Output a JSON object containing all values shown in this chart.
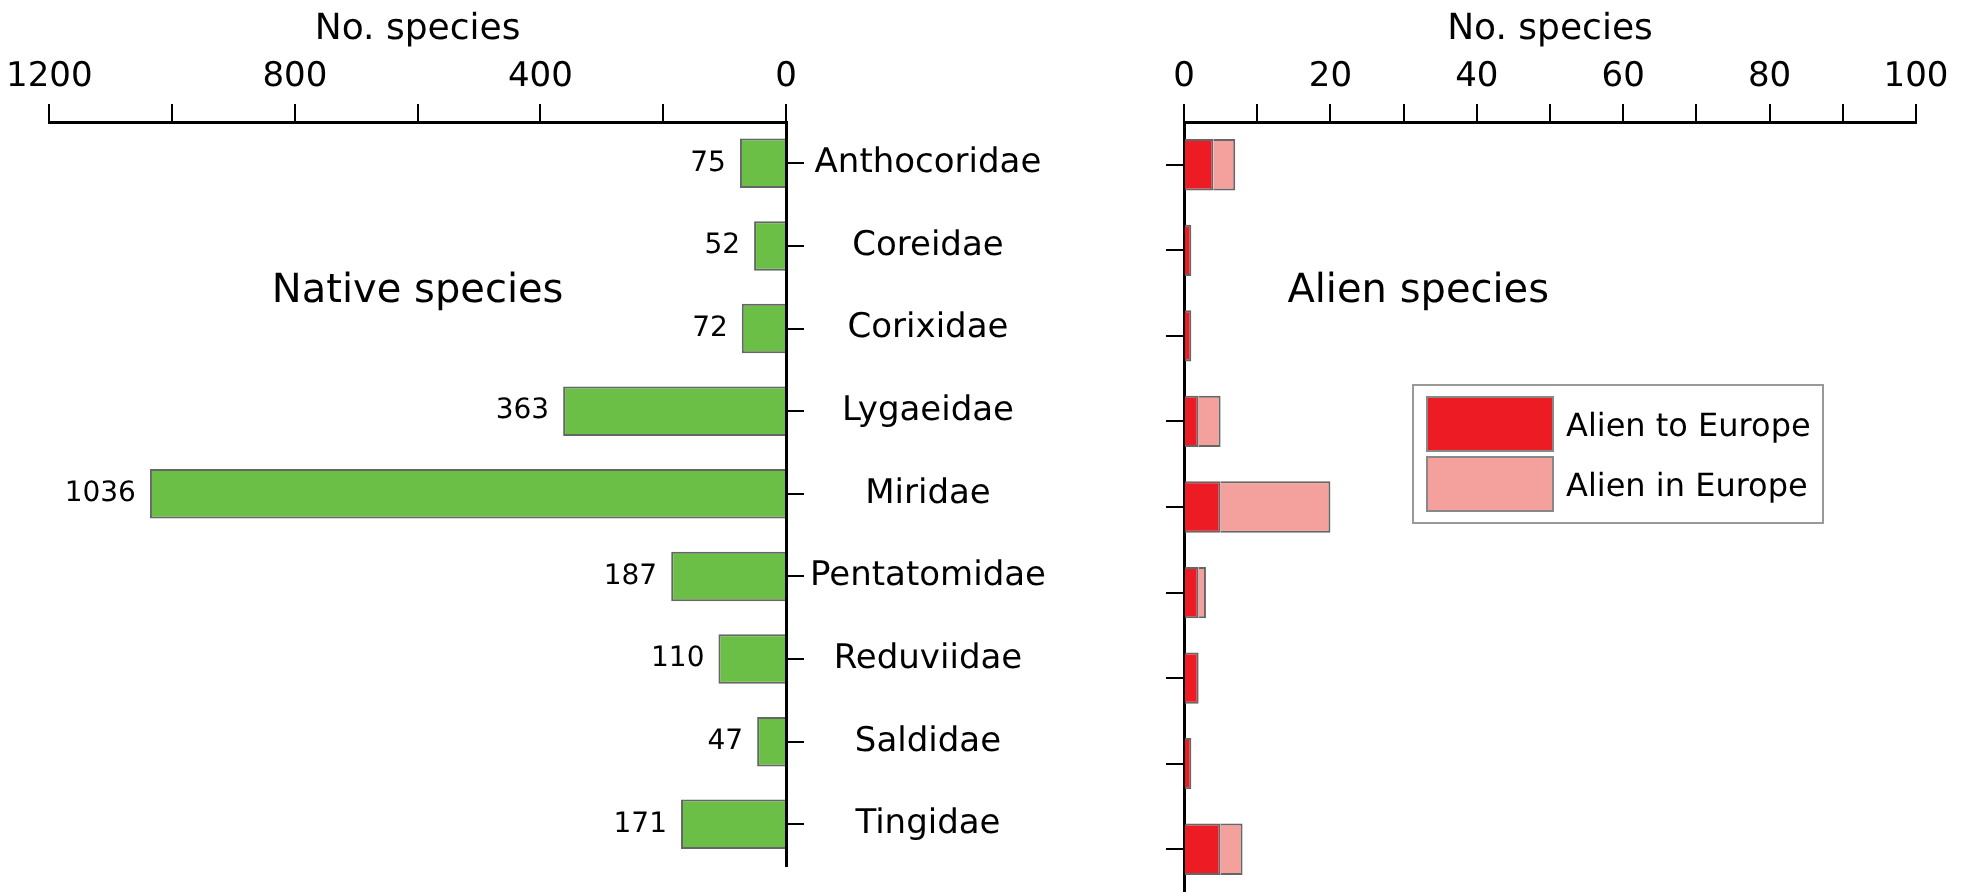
{
  "chart_data": [
    {
      "type": "bar",
      "orientation": "horizontal",
      "xlabel": "No. species",
      "categories": [
        "Anthocoridae",
        "Coreidae",
        "Corixidae",
        "Lygaeidae",
        "Miridae",
        "Pentatomidae",
        "Reduviidae",
        "Saldidae",
        "Tingidae"
      ],
      "values": [
        75,
        52,
        72,
        363,
        1036,
        187,
        110,
        47,
        171
      ],
      "color": "#6bbf47",
      "xlim": [
        1200,
        0
      ],
      "xticks": [
        1200,
        {
          "value": 1000,
          "label": null
        },
        800,
        {
          "value": 600,
          "label": null
        },
        400,
        {
          "value": 200,
          "label": null
        },
        0
      ],
      "data_labels": true,
      "grid": false,
      "annotations": [
        "Native species"
      ]
    },
    {
      "type": "bar",
      "orientation": "horizontal",
      "stacked": true,
      "xlabel": "No. species",
      "categories": [
        null,
        null,
        null,
        null,
        null,
        null,
        null,
        null,
        null
      ],
      "series": [
        {
          "name": "Alien to Europe",
          "color": "#ed1c24",
          "values": [
            4,
            1,
            1,
            2,
            5,
            2,
            2,
            1,
            5
          ]
        },
        {
          "name": "Alien in Europe",
          "color": "#f4a09c",
          "values": [
            3,
            0,
            0,
            3,
            15,
            1,
            0,
            0,
            3
          ]
        }
      ],
      "xlim": [
        0,
        100
      ],
      "xticks": [
        0,
        {
          "value": 10,
          "label": null
        },
        20,
        {
          "value": 30,
          "label": null
        },
        40,
        {
          "value": 50,
          "label": null
        },
        60,
        {
          "value": 70,
          "label": null
        },
        80,
        {
          "value": 90,
          "label": null
        },
        100
      ],
      "tick_labels": "x",
      "grid": false,
      "legend": "right",
      "annotations": [
        "Alien species"
      ]
    }
  ]
}
